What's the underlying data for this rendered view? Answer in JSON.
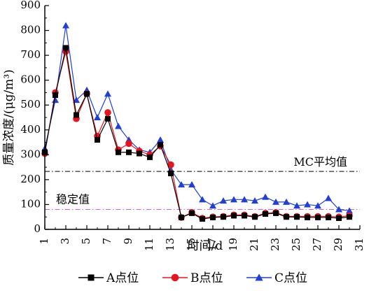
{
  "chart_data": {
    "type": "line",
    "xlabel": "时间/d",
    "ylabel": "质量浓度/(μg/m³)",
    "xlim": [
      1,
      31
    ],
    "ylim": [
      0,
      900
    ],
    "x_ticks": [
      1,
      3,
      5,
      7,
      9,
      11,
      13,
      15,
      17,
      19,
      21,
      23,
      25,
      27,
      29,
      31
    ],
    "y_ticks": [
      0,
      100,
      200,
      300,
      400,
      500,
      600,
      700,
      800,
      900
    ],
    "grid": false,
    "legend_position": "bottom",
    "x": [
      1,
      2,
      3,
      4,
      5,
      6,
      7,
      8,
      9,
      10,
      11,
      12,
      13,
      14,
      15,
      16,
      17,
      18,
      19,
      20,
      21,
      22,
      23,
      24,
      25,
      26,
      27,
      28,
      29,
      30
    ],
    "series": [
      {
        "name": "A点位",
        "marker": "square",
        "color": "#000000",
        "values": [
          310,
          540,
          730,
          460,
          545,
          360,
          445,
          310,
          310,
          305,
          290,
          340,
          225,
          48,
          65,
          42,
          48,
          50,
          55,
          55,
          50,
          62,
          65,
          50,
          50,
          48,
          48,
          48,
          45,
          50
        ]
      },
      {
        "name": "B点位",
        "marker": "circle",
        "color": "#e8141c",
        "values": [
          305,
          550,
          715,
          445,
          545,
          375,
          470,
          320,
          345,
          315,
          300,
          335,
          260,
          48,
          68,
          45,
          50,
          52,
          58,
          58,
          52,
          65,
          68,
          52,
          52,
          52,
          52,
          52,
          50,
          55
        ]
      },
      {
        "name": "C点位",
        "marker": "triangle",
        "color": "#1f3fd8",
        "values": [
          325,
          520,
          820,
          520,
          560,
          450,
          545,
          415,
          360,
          320,
          310,
          360,
          240,
          180,
          180,
          120,
          95,
          115,
          120,
          120,
          115,
          130,
          110,
          110,
          95,
          100,
          95,
          125,
          80,
          75
        ]
      }
    ],
    "reference_lines": [
      {
        "label": "MC平均值",
        "value": 233,
        "style": "dashdot",
        "color": "#000000"
      },
      {
        "label": "稳定值",
        "value": 80,
        "style": "dashdot",
        "color": "#cc66cc"
      }
    ]
  }
}
